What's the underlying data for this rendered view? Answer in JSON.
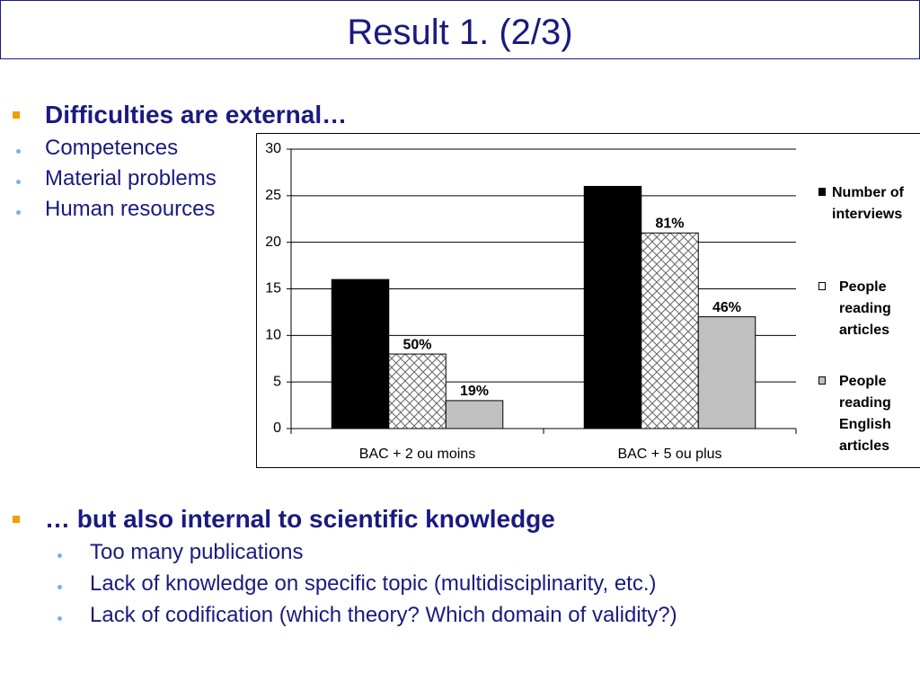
{
  "title": "Result 1. (2/3)",
  "section1": {
    "heading": "Difficulties are external…",
    "items": [
      "Competences",
      "Material problems",
      "Human resources"
    ]
  },
  "section2": {
    "heading": "… but also internal to scientific knowledge",
    "items": [
      "Too many publications",
      "Lack of knowledge on specific topic (multidisciplinarity, etc.)",
      "Lack of codification (which theory? Which domain of validity?)"
    ]
  },
  "chart_data": {
    "type": "bar",
    "categories": [
      "BAC + 2 ou moins",
      "BAC + 5 ou plus"
    ],
    "series": [
      {
        "name": "Number of interviews",
        "color": "#000000",
        "values": [
          16,
          26
        ]
      },
      {
        "name": "People reading articles",
        "color": "#ffffff",
        "hatch": true,
        "values": [
          8,
          21
        ],
        "labels": [
          "50%",
          "81%"
        ]
      },
      {
        "name": "People reading English articles",
        "color": "#c0c0c0",
        "values": [
          3,
          12
        ],
        "labels": [
          "19%",
          "46%"
        ]
      }
    ],
    "ylim": [
      0,
      30
    ],
    "yticks": [
      0,
      5,
      10,
      15,
      20,
      25,
      30
    ],
    "grid": true,
    "legend": "right"
  }
}
